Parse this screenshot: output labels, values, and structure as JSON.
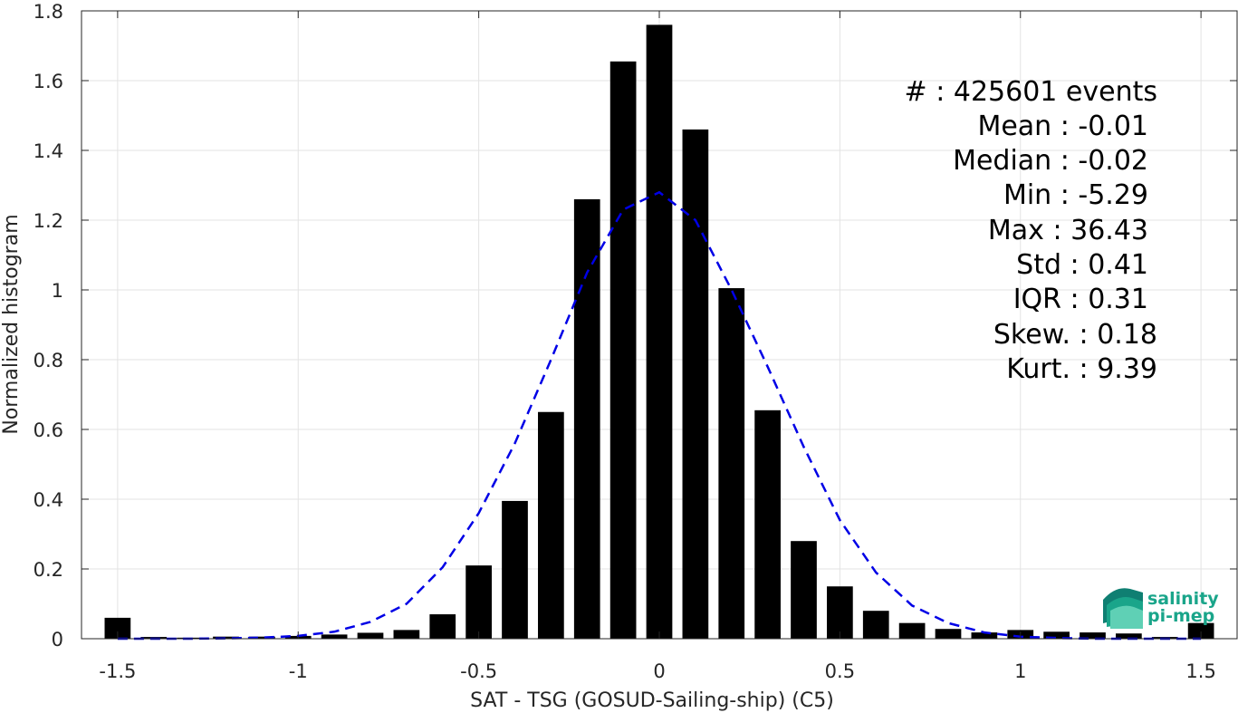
{
  "chart_data": {
    "type": "bar",
    "xlabel": "SAT - TSG (GOSUD-Sailing-ship) (C5)",
    "ylabel": "Normalized histogram",
    "xlim": [
      -1.6,
      1.6
    ],
    "ylim": [
      0,
      1.8
    ],
    "xticks": [
      -1.5,
      -1,
      -0.5,
      0,
      0.5,
      1,
      1.5
    ],
    "xtick_labels": [
      "-1.5",
      "-1",
      "-0.5",
      "0",
      "0.5",
      "1",
      "1.5"
    ],
    "yticks": [
      0,
      0.2,
      0.4,
      0.6,
      0.8,
      1,
      1.2,
      1.4,
      1.6,
      1.8
    ],
    "ytick_labels": [
      "0",
      "0.2",
      "0.4",
      "0.6",
      "0.8",
      "1",
      "1.2",
      "1.4",
      "1.6",
      "1.8"
    ],
    "grid": true,
    "bar_color": "#000000",
    "bins": [
      -1.5,
      -1.4,
      -1.3,
      -1.2,
      -1.1,
      -1.0,
      -0.9,
      -0.8,
      -0.7,
      -0.6,
      -0.5,
      -0.4,
      -0.3,
      -0.2,
      -0.1,
      0.0,
      0.1,
      0.2,
      0.3,
      0.4,
      0.5,
      0.6,
      0.7,
      0.8,
      0.9,
      1.0,
      1.1,
      1.2,
      1.3,
      1.4,
      1.5
    ],
    "values": [
      0.06,
      0.005,
      0.003,
      0.006,
      0.006,
      0.008,
      0.012,
      0.017,
      0.025,
      0.07,
      0.21,
      0.395,
      0.65,
      1.26,
      1.655,
      1.76,
      1.46,
      1.005,
      0.655,
      0.28,
      0.15,
      0.08,
      0.045,
      0.028,
      0.018,
      0.025,
      0.02,
      0.018,
      0.015,
      0.005,
      0.045
    ],
    "fit_curve": {
      "style": "dashed",
      "color": "#0000e6",
      "x": [
        -1.5,
        -1.4,
        -1.3,
        -1.2,
        -1.1,
        -1.0,
        -0.9,
        -0.8,
        -0.7,
        -0.6,
        -0.5,
        -0.4,
        -0.3,
        -0.2,
        -0.1,
        0.0,
        0.1,
        0.2,
        0.3,
        0.4,
        0.5,
        0.6,
        0.7,
        0.8,
        0.9,
        1.0,
        1.1,
        1.2,
        1.3,
        1.4,
        1.5
      ],
      "y": [
        0.0,
        0.0,
        0.0,
        0.001,
        0.003,
        0.008,
        0.02,
        0.048,
        0.1,
        0.205,
        0.36,
        0.56,
        0.8,
        1.05,
        1.23,
        1.28,
        1.2,
        1.0,
        0.78,
        0.55,
        0.34,
        0.19,
        0.095,
        0.045,
        0.018,
        0.006,
        0.002,
        0.0,
        0.0,
        0.0,
        0.0
      ]
    },
    "stats": [
      "#  : 425601 events",
      "Mean : -0.01",
      "Median : -0.02",
      "Min : -5.29",
      "Max : 36.43",
      "Std : 0.41",
      "IQR : 0.31",
      "Skew. : 0.18",
      "Kurt. : 9.39"
    ]
  },
  "logo": {
    "line1": "salinity",
    "line2": "pi-mep",
    "color": "#1aa58a"
  }
}
